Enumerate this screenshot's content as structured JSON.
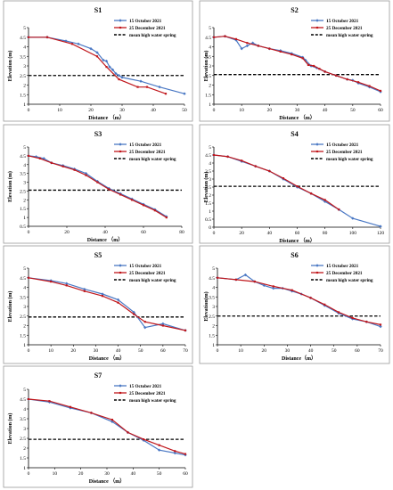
{
  "legend_labels": {
    "oct": "15 October 2021",
    "dec": "25 December 2021",
    "mhws": "mean high water spring"
  },
  "colors": {
    "oct": "#4a78c4",
    "dec": "#c0161b",
    "mhws": "#000000"
  },
  "chart_data": [
    {
      "type": "line",
      "title": "S1",
      "xlabel": "Distance （m）",
      "ylabel": "Elevation (m)",
      "xlim": [
        0,
        50
      ],
      "ylim": [
        1,
        5
      ],
      "xticks": [
        0,
        10,
        20,
        30,
        40,
        50
      ],
      "yticks": [
        1,
        1.5,
        2,
        2.5,
        3,
        3.5,
        4,
        4.5,
        5
      ],
      "mhws": 2.5,
      "series": [
        {
          "name": "15 October 2021",
          "x": [
            0,
            6,
            12,
            16,
            20,
            22,
            24,
            25,
            26,
            27,
            28,
            29,
            30,
            36,
            42,
            50
          ],
          "y": [
            4.5,
            4.5,
            4.3,
            4.15,
            3.9,
            3.7,
            3.3,
            3.25,
            2.95,
            2.8,
            2.6,
            2.5,
            2.4,
            2.2,
            1.9,
            1.55
          ]
        },
        {
          "name": "25 December 2021",
          "x": [
            0,
            6,
            14,
            22,
            25,
            29,
            35,
            38,
            44
          ],
          "y": [
            4.5,
            4.5,
            4.15,
            3.5,
            2.95,
            2.3,
            1.9,
            1.9,
            1.55
          ]
        }
      ]
    },
    {
      "type": "line",
      "title": "S2",
      "xlabel": "Distance （m）",
      "ylabel": "Elevation (m)",
      "xlim": [
        0,
        60
      ],
      "ylim": [
        1,
        5
      ],
      "xticks": [
        0,
        10,
        20,
        30,
        40,
        50,
        60
      ],
      "yticks": [
        1,
        1.5,
        2,
        2.5,
        3,
        3.5,
        4,
        4.5,
        5
      ],
      "mhws": 2.55,
      "series": [
        {
          "name": "15 October 2021",
          "x": [
            0,
            4,
            8,
            10,
            12,
            14,
            16,
            20,
            24,
            28,
            32,
            33,
            35,
            37,
            40,
            44,
            48,
            50,
            52,
            56,
            60
          ],
          "y": [
            4.5,
            4.55,
            4.35,
            3.9,
            4.05,
            4.2,
            4.05,
            3.9,
            3.8,
            3.65,
            3.45,
            3.3,
            3.0,
            2.9,
            2.7,
            2.5,
            2.3,
            2.25,
            2.1,
            1.9,
            1.65
          ]
        },
        {
          "name": "25 December 2021",
          "x": [
            0,
            4,
            8,
            12,
            16,
            20,
            24,
            28,
            32,
            34,
            36,
            38,
            40,
            44,
            48,
            52,
            56,
            60
          ],
          "y": [
            4.5,
            4.55,
            4.4,
            4.2,
            4.05,
            3.9,
            3.75,
            3.6,
            3.4,
            3.05,
            3.0,
            2.85,
            2.7,
            2.5,
            2.3,
            2.15,
            1.95,
            1.7
          ]
        }
      ]
    },
    {
      "type": "line",
      "title": "S3",
      "xlabel": "Distance （m）",
      "ylabel": "Elevation (m)",
      "xlim": [
        0,
        80
      ],
      "ylim": [
        0.5,
        5
      ],
      "xticks": [
        0,
        20,
        40,
        60,
        80
      ],
      "yticks": [
        0.5,
        1,
        1.5,
        2,
        2.5,
        3,
        3.5,
        4,
        4.5,
        5
      ],
      "mhws": 2.55,
      "series": [
        {
          "name": "15 October 2021",
          "x": [
            0,
            4,
            8,
            12,
            18,
            24,
            30,
            36,
            42,
            48,
            54,
            60,
            66,
            72
          ],
          "y": [
            4.5,
            4.45,
            4.35,
            4.1,
            3.95,
            3.75,
            3.5,
            3.05,
            2.65,
            2.35,
            2.05,
            1.75,
            1.45,
            1.05
          ]
        },
        {
          "name": "25 December 2021",
          "x": [
            0,
            6,
            12,
            18,
            24,
            30,
            36,
            42,
            48,
            54,
            60,
            66,
            72
          ],
          "y": [
            4.5,
            4.35,
            4.1,
            3.9,
            3.7,
            3.4,
            3.0,
            2.6,
            2.3,
            2.0,
            1.7,
            1.4,
            1.0
          ]
        }
      ]
    },
    {
      "type": "line",
      "title": "S4",
      "xlabel": "Distance （m）",
      "ylabel": "Elevation (m)",
      "xlim": [
        0,
        120
      ],
      "ylim": [
        0,
        5
      ],
      "xticks": [
        0,
        20,
        40,
        60,
        80,
        100,
        120
      ],
      "yticks": [
        0,
        0.5,
        1,
        1.5,
        2,
        2.5,
        3,
        3.5,
        4,
        4.5,
        5
      ],
      "mhws": 2.55,
      "series": [
        {
          "name": "15 October 2021",
          "x": [
            0,
            10,
            20,
            30,
            40,
            50,
            60,
            70,
            80,
            90,
            100,
            120
          ],
          "y": [
            4.5,
            4.4,
            4.1,
            3.8,
            3.5,
            3.0,
            2.5,
            2.1,
            1.6,
            1.1,
            0.55,
            0.05
          ]
        },
        {
          "name": "25 December 2021",
          "x": [
            0,
            10,
            20,
            30,
            40,
            50,
            60,
            70,
            80,
            90
          ],
          "y": [
            4.5,
            4.4,
            4.15,
            3.8,
            3.5,
            3.05,
            2.55,
            2.1,
            1.7,
            1.1
          ]
        }
      ]
    },
    {
      "type": "line",
      "title": "S5",
      "xlabel": "Distance （m）",
      "ylabel": "Elevation (m)",
      "xlim": [
        0,
        70
      ],
      "ylim": [
        1,
        5
      ],
      "xticks": [
        0,
        10,
        20,
        30,
        40,
        50,
        60,
        70
      ],
      "yticks": [
        1,
        1.5,
        2,
        2.5,
        3,
        3.5,
        4,
        4.5,
        5
      ],
      "mhws": 2.45,
      "series": [
        {
          "name": "15 October 2021",
          "x": [
            0,
            10,
            17,
            25,
            33,
            40,
            47,
            52,
            60,
            70
          ],
          "y": [
            4.5,
            4.35,
            4.2,
            3.9,
            3.65,
            3.35,
            2.7,
            1.9,
            2.1,
            1.75
          ]
        },
        {
          "name": "25 December 2021",
          "x": [
            0,
            10,
            17,
            25,
            33,
            40,
            47,
            52,
            60,
            70
          ],
          "y": [
            4.5,
            4.3,
            4.1,
            3.8,
            3.55,
            3.2,
            2.6,
            2.2,
            2.0,
            1.75
          ]
        }
      ]
    },
    {
      "type": "line",
      "title": "S6",
      "xlabel": "Distance（m）",
      "ylabel": "Elevation(m)",
      "xlim": [
        0,
        70
      ],
      "ylim": [
        1,
        5
      ],
      "xticks": [
        0,
        10,
        20,
        30,
        40,
        50,
        60,
        70
      ],
      "yticks": [
        1,
        1.5,
        2,
        2.5,
        3,
        3.5,
        4,
        4.5,
        5
      ],
      "mhws": 2.5,
      "series": [
        {
          "name": "15 October 2021",
          "x": [
            0,
            8,
            12,
            16,
            20,
            24,
            28,
            32,
            36,
            40,
            46,
            52,
            58,
            64,
            70
          ],
          "y": [
            4.5,
            4.4,
            4.65,
            4.3,
            4.1,
            3.95,
            3.95,
            3.8,
            3.65,
            3.45,
            3.05,
            2.65,
            2.35,
            2.2,
            1.95
          ]
        },
        {
          "name": "25 December 2021",
          "x": [
            0,
            8,
            16,
            24,
            32,
            40,
            46,
            52,
            58,
            64,
            70
          ],
          "y": [
            4.5,
            4.4,
            4.3,
            4.05,
            3.85,
            3.45,
            3.1,
            2.7,
            2.4,
            2.2,
            2.05
          ]
        }
      ]
    },
    {
      "type": "line",
      "title": "S7",
      "xlabel": "Distance （m）",
      "ylabel": "Elevation (m)",
      "xlim": [
        0,
        60
      ],
      "ylim": [
        1,
        5
      ],
      "xticks": [
        0,
        10,
        20,
        30,
        40,
        50,
        60
      ],
      "yticks": [
        1,
        1.5,
        2,
        2.5,
        3,
        3.5,
        4,
        4.5,
        5
      ],
      "mhws": 2.45,
      "series": [
        {
          "name": "15 October 2021",
          "x": [
            0,
            8,
            16,
            24,
            32,
            38,
            44,
            50,
            56,
            60
          ],
          "y": [
            4.5,
            4.35,
            4.05,
            3.8,
            3.35,
            2.8,
            2.4,
            1.9,
            1.75,
            1.65
          ]
        },
        {
          "name": "25 December 2021",
          "x": [
            0,
            8,
            16,
            24,
            32,
            38,
            44,
            50,
            56,
            60
          ],
          "y": [
            4.5,
            4.4,
            4.1,
            3.8,
            3.45,
            2.8,
            2.45,
            2.15,
            1.85,
            1.7
          ]
        }
      ]
    }
  ]
}
